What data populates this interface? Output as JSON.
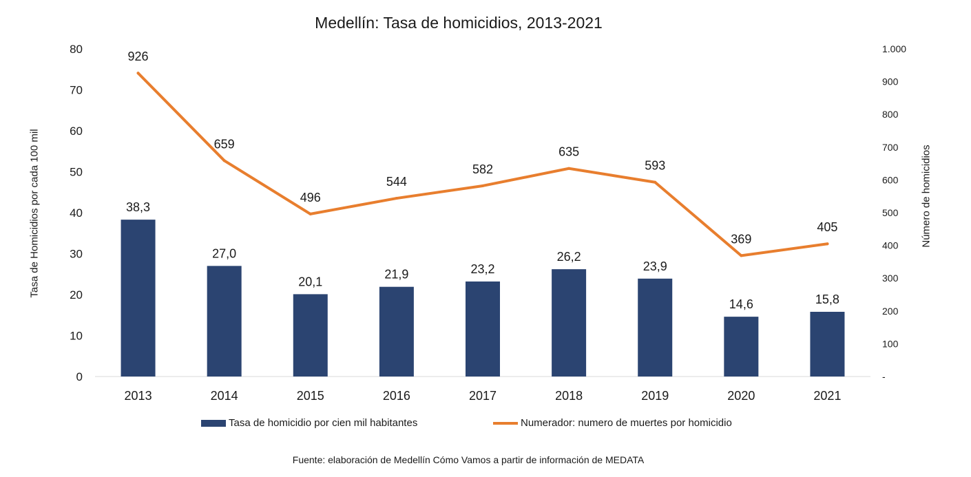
{
  "colors": {
    "bars": "#2B4471",
    "line": "#E87E2E",
    "axis": "#d9d9d9",
    "text": "#1a1a1a"
  },
  "source_note": "Fuente: elaboración de Medellín Cómo Vamos a partir de información de MEDATA",
  "chart_data": {
    "type": "bar+line",
    "title": "Medellín: Tasa de homicidios, 2013-2021",
    "ylabel": "Tasa de Homicidios por cada 100 mil",
    "y2label": "Número de homicidios",
    "categories": [
      "2013",
      "2014",
      "2015",
      "2016",
      "2017",
      "2018",
      "2019",
      "2020",
      "2021"
    ],
    "ylim": [
      0,
      80
    ],
    "y2lim": [
      0,
      1000
    ],
    "yticks": [
      "0",
      "10",
      "20",
      "30",
      "40",
      "50",
      "60",
      "70",
      "80"
    ],
    "y2ticks": [
      "-",
      "100",
      "200",
      "300",
      "400",
      "500",
      "600",
      "700",
      "800",
      "900",
      "1.000"
    ],
    "grid": false,
    "legend_position": "bottom",
    "series": [
      {
        "name": "Tasa de homicidio por cien mil habitantes",
        "type": "bar",
        "axis": "left",
        "values": [
          38.3,
          27.0,
          20.1,
          21.9,
          23.2,
          26.2,
          23.9,
          14.6,
          15.8
        ],
        "labels": [
          "38,3",
          "27,0",
          "20,1",
          "21,9",
          "23,2",
          "26,2",
          "23,9",
          "14,6",
          "15,8"
        ]
      },
      {
        "name": "Numerador: numero de muertes por homicidio",
        "type": "line",
        "axis": "right",
        "values": [
          926,
          659,
          496,
          544,
          582,
          635,
          593,
          369,
          405
        ],
        "labels": [
          "926",
          "659",
          "496",
          "544",
          "582",
          "635",
          "593",
          "369",
          "405"
        ]
      }
    ]
  }
}
